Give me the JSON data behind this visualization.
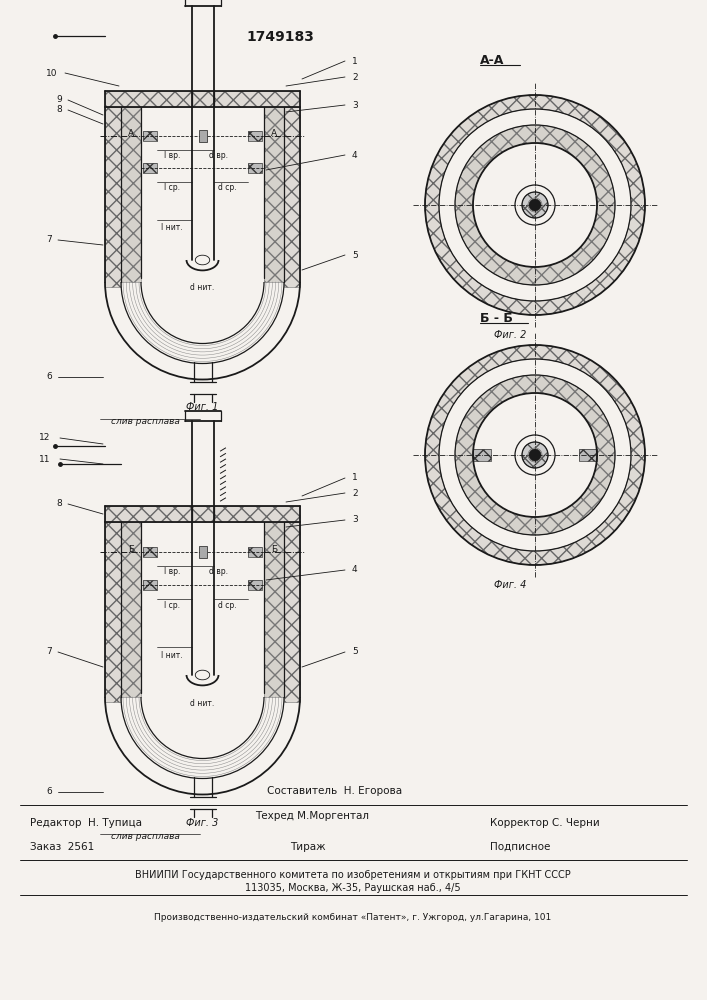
{
  "patent_number": "1749183",
  "bg_color": "#f5f2ee",
  "line_color": "#1a1a1a",
  "fig1_caption": "Фиг. 1",
  "fig2_caption": "Фиг. 2",
  "fig3_caption": "Фиг. 3",
  "fig4_caption": "Фиг. 4",
  "section_aa": "A-A",
  "section_bb": "Б - Б",
  "sliv_label": "слив расплава",
  "lbl_l_vr": "l вр.",
  "lbl_d_vr": "d вр.",
  "lbl_l_sr": "l ср.",
  "lbl_d_sr": "d ср.",
  "lbl_l_nit": "l нит.",
  "lbl_d_nit": "d нит.",
  "footer_line1": "Составитель  Н. Егорова",
  "footer_line2_left": "Редактор  Н. Тупица",
  "footer_line2_mid": "Техред М.Моргентал",
  "footer_line2_right": "Корректор С. Черни",
  "footer_line3_left": "Заказ  2561",
  "footer_line3_mid": "Тираж",
  "footer_line3_right": "Подписное",
  "footer_line4": "ВНИИПИ Государственного комитета по изобретениям и открытиям при ГКНТ СССР",
  "footer_line5": "113035, Москва, Ж-35, Раушская наб., 4/5",
  "footer_line6": "Производственно-издательский комбинат «Патент», г. Ужгород, ул.Гагарина, 101"
}
